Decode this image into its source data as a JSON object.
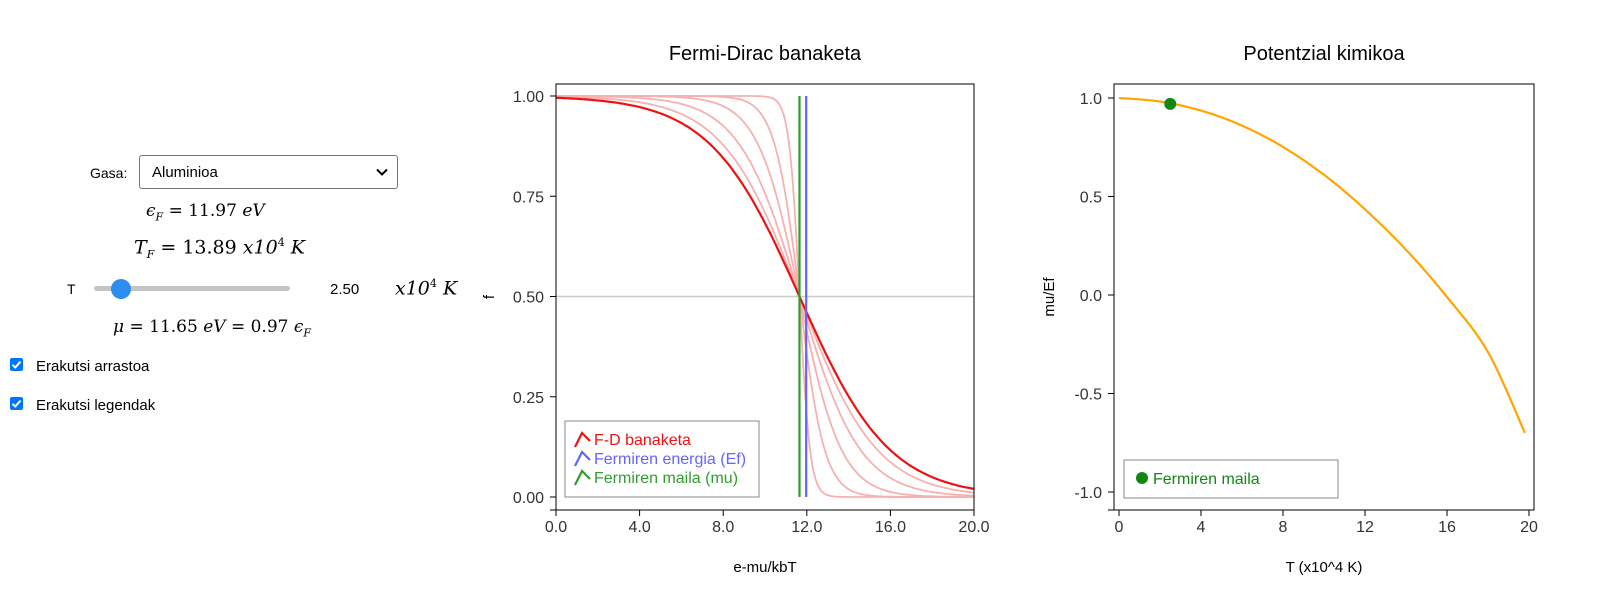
{
  "controls": {
    "gas_label": "Gasa:",
    "gas_selected": "Aluminioa",
    "ef": {
      "symbol": "ϵ",
      "sub": "F",
      "value": "11.97",
      "unit": "eV"
    },
    "tf": {
      "symbol": "T",
      "sub": "F",
      "value": "13.89",
      "unit_base": "x10",
      "unit_exp": "4",
      "unit_k": "K"
    },
    "t_slider": {
      "label": "T",
      "value": "2.50",
      "unit_base": "x10",
      "unit_exp": "4",
      "unit_k": "K",
      "fraction": 0.14
    },
    "mu": {
      "symbol": "μ",
      "value": "11.65",
      "unit": "eV",
      "ratio": "0.97",
      "ef_symbol": "ϵ",
      "ef_sub": "F"
    },
    "show_trail": {
      "label": "Erakutsi arrastoa",
      "checked": true
    },
    "show_legends": {
      "label": "Erakutsi legendak",
      "checked": true
    }
  },
  "chart_data": [
    {
      "type": "line",
      "title": "Fermi-Dirac banaketa",
      "xlabel": "e-mu/kbT",
      "ylabel": "f",
      "xlim": [
        0,
        20
      ],
      "ylim": [
        0,
        1
      ],
      "xticks": [
        "0.0",
        "4.0",
        "8.0",
        "12.0",
        "16.0",
        "20.0"
      ],
      "yticks": [
        "0.00",
        "0.25",
        "0.50",
        "0.75",
        "1.00"
      ],
      "mu": 11.65,
      "ef": 11.97,
      "current_kT": 2.15,
      "trail_kT": [
        0.25,
        0.6,
        1.0,
        1.45,
        1.85
      ],
      "reference_y": 0.5,
      "legend": [
        "F-D banaketa",
        "Fermiren energia (Ef)",
        "Fermiren maila (mu)"
      ],
      "legend_position": "bottom-left",
      "colors": {
        "fd": "#ee1111",
        "trail": "#f7b0b0",
        "ef": "#6464ff",
        "mu": "#2e9e2e",
        "ref": "#cccccc"
      }
    },
    {
      "type": "line",
      "title": "Potentzial kimikoa",
      "xlabel": "T (x10^4 K)",
      "ylabel": "mu/Ef",
      "xlim": [
        0,
        20
      ],
      "ylim": [
        -1,
        1
      ],
      "xticks": [
        "0",
        "4",
        "8",
        "12",
        "16",
        "20"
      ],
      "yticks": [
        "-1.0",
        "-0.5",
        "0.0",
        "0.5",
        "1.0"
      ],
      "x": [
        0,
        2,
        4,
        6,
        8,
        10,
        12,
        14,
        16,
        18,
        19.8
      ],
      "y": [
        1.0,
        0.982,
        0.936,
        0.86,
        0.752,
        0.61,
        0.435,
        0.23,
        -0.01,
        -0.29,
        -0.7
      ],
      "point": {
        "x": 2.5,
        "y": 0.97
      },
      "legend": [
        "Fermiren maila"
      ],
      "legend_position": "bottom-left",
      "colors": {
        "curve": "#ffa500",
        "point": "#118811"
      }
    }
  ]
}
